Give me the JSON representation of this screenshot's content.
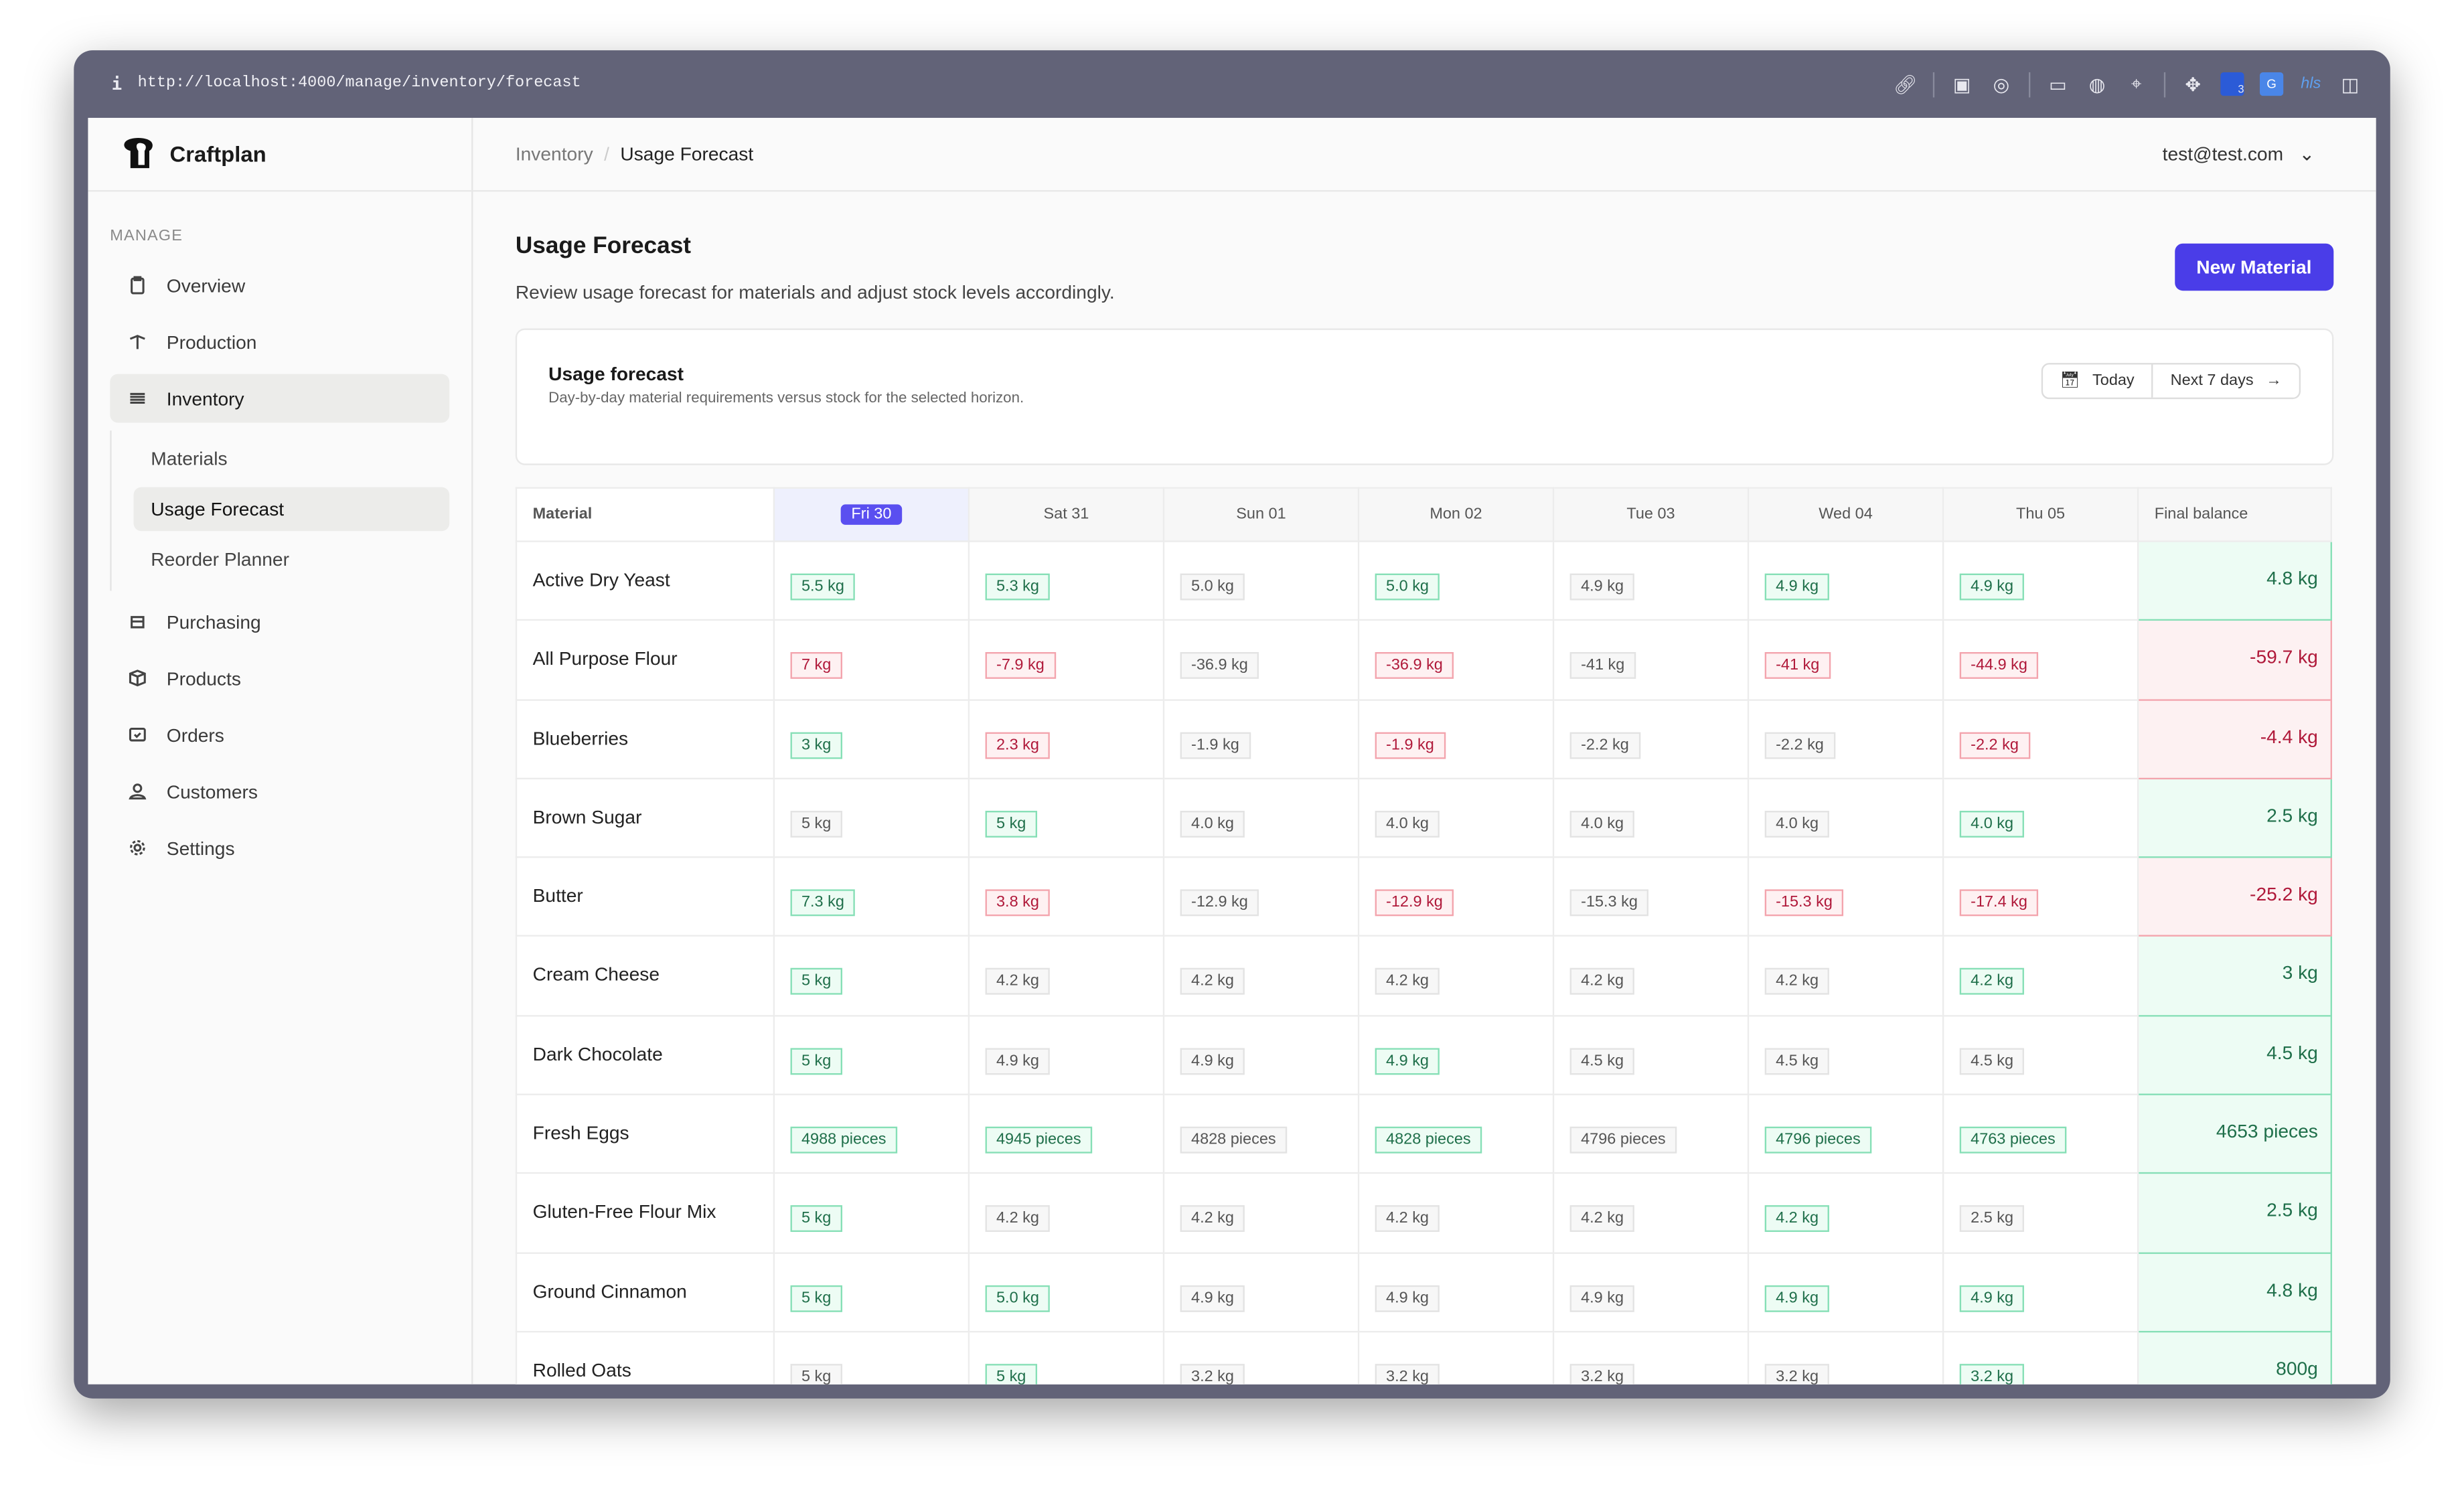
{
  "browser": {
    "url": "http://localhost:4000/manage/inventory/forecast",
    "info": "i",
    "extension_badge": "3",
    "hls": "hls"
  },
  "brand": "Craftplan",
  "sidebar": {
    "section": "MANAGE",
    "items": [
      {
        "label": "Overview",
        "icon": "clipboard-icon"
      },
      {
        "label": "Production",
        "icon": "signpost-icon"
      },
      {
        "label": "Inventory",
        "icon": "list-icon"
      },
      {
        "label": "Purchasing",
        "icon": "tray-icon"
      },
      {
        "label": "Products",
        "icon": "cube-icon"
      },
      {
        "label": "Orders",
        "icon": "inbox-check-icon"
      },
      {
        "label": "Customers",
        "icon": "users-icon"
      },
      {
        "label": "Settings",
        "icon": "gear-icon"
      }
    ],
    "subitems": [
      "Materials",
      "Usage Forecast",
      "Reorder Planner"
    ]
  },
  "header": {
    "crumb_parent": "Inventory",
    "crumb_sep": "/",
    "crumb_current": "Usage Forecast",
    "user": "test@test.com"
  },
  "page": {
    "title": "Usage Forecast",
    "description": "Review usage forecast for materials and adjust stock levels accordingly.",
    "new_button": "New Material"
  },
  "card": {
    "title": "Usage forecast",
    "subtitle": "Day-by-day material requirements versus stock for the selected horizon.",
    "today": "Today",
    "next": "Next 7 days"
  },
  "table": {
    "columns": [
      "Material",
      "Fri 30",
      "Sat 31",
      "Sun 01",
      "Mon 02",
      "Tue 03",
      "Wed 04",
      "Thu 05",
      "Final balance"
    ],
    "rows": [
      {
        "material": "Active Dry Yeast",
        "cells": [
          [
            "5.5 kg",
            "ok"
          ],
          [
            "5.3 kg",
            "ok"
          ],
          [
            "5.0 kg",
            "neutral"
          ],
          [
            "5.0 kg",
            "ok"
          ],
          [
            "4.9 kg",
            "neutral"
          ],
          [
            "4.9 kg",
            "ok"
          ],
          [
            "4.9 kg",
            "ok"
          ]
        ],
        "final": [
          "4.8 kg",
          "ok"
        ]
      },
      {
        "material": "All Purpose Flour",
        "cells": [
          [
            "7 kg",
            "short"
          ],
          [
            "-7.9 kg",
            "short"
          ],
          [
            "-36.9 kg",
            "neutral"
          ],
          [
            "-36.9 kg",
            "short"
          ],
          [
            "-41 kg",
            "neutral"
          ],
          [
            "-41 kg",
            "short"
          ],
          [
            "-44.9 kg",
            "short"
          ]
        ],
        "final": [
          "-59.7 kg",
          "short"
        ]
      },
      {
        "material": "Blueberries",
        "cells": [
          [
            "3 kg",
            "ok"
          ],
          [
            "2.3 kg",
            "short"
          ],
          [
            "-1.9 kg",
            "neutral"
          ],
          [
            "-1.9 kg",
            "short"
          ],
          [
            "-2.2 kg",
            "neutral"
          ],
          [
            "-2.2 kg",
            "neutral"
          ],
          [
            "-2.2 kg",
            "short"
          ]
        ],
        "final": [
          "-4.4 kg",
          "short"
        ]
      },
      {
        "material": "Brown Sugar",
        "cells": [
          [
            "5 kg",
            "neutral"
          ],
          [
            "5 kg",
            "ok"
          ],
          [
            "4.0 kg",
            "neutral"
          ],
          [
            "4.0 kg",
            "neutral"
          ],
          [
            "4.0 kg",
            "neutral"
          ],
          [
            "4.0 kg",
            "neutral"
          ],
          [
            "4.0 kg",
            "ok"
          ]
        ],
        "final": [
          "2.5 kg",
          "ok"
        ]
      },
      {
        "material": "Butter",
        "cells": [
          [
            "7.3 kg",
            "ok"
          ],
          [
            "3.8 kg",
            "short"
          ],
          [
            "-12.9 kg",
            "neutral"
          ],
          [
            "-12.9 kg",
            "short"
          ],
          [
            "-15.3 kg",
            "neutral"
          ],
          [
            "-15.3 kg",
            "short"
          ],
          [
            "-17.4 kg",
            "short"
          ]
        ],
        "final": [
          "-25.2 kg",
          "short"
        ]
      },
      {
        "material": "Cream Cheese",
        "cells": [
          [
            "5 kg",
            "ok"
          ],
          [
            "4.2 kg",
            "neutral"
          ],
          [
            "4.2 kg",
            "neutral"
          ],
          [
            "4.2 kg",
            "neutral"
          ],
          [
            "4.2 kg",
            "neutral"
          ],
          [
            "4.2 kg",
            "neutral"
          ],
          [
            "4.2 kg",
            "ok"
          ]
        ],
        "final": [
          "3 kg",
          "ok"
        ]
      },
      {
        "material": "Dark Chocolate",
        "cells": [
          [
            "5 kg",
            "ok"
          ],
          [
            "4.9 kg",
            "neutral"
          ],
          [
            "4.9 kg",
            "neutral"
          ],
          [
            "4.9 kg",
            "ok"
          ],
          [
            "4.5 kg",
            "neutral"
          ],
          [
            "4.5 kg",
            "neutral"
          ],
          [
            "4.5 kg",
            "neutral"
          ]
        ],
        "final": [
          "4.5 kg",
          "ok"
        ]
      },
      {
        "material": "Fresh Eggs",
        "cells": [
          [
            "4988 pieces",
            "ok"
          ],
          [
            "4945 pieces",
            "ok"
          ],
          [
            "4828 pieces",
            "neutral"
          ],
          [
            "4828 pieces",
            "ok"
          ],
          [
            "4796 pieces",
            "neutral"
          ],
          [
            "4796 pieces",
            "ok"
          ],
          [
            "4763 pieces",
            "ok"
          ]
        ],
        "final": [
          "4653 pieces",
          "ok"
        ]
      },
      {
        "material": "Gluten-Free Flour Mix",
        "cells": [
          [
            "5 kg",
            "ok"
          ],
          [
            "4.2 kg",
            "neutral"
          ],
          [
            "4.2 kg",
            "neutral"
          ],
          [
            "4.2 kg",
            "neutral"
          ],
          [
            "4.2 kg",
            "neutral"
          ],
          [
            "4.2 kg",
            "ok"
          ],
          [
            "2.5 kg",
            "neutral"
          ]
        ],
        "final": [
          "2.5 kg",
          "ok"
        ]
      },
      {
        "material": "Ground Cinnamon",
        "cells": [
          [
            "5 kg",
            "ok"
          ],
          [
            "5.0 kg",
            "ok"
          ],
          [
            "4.9 kg",
            "neutral"
          ],
          [
            "4.9 kg",
            "neutral"
          ],
          [
            "4.9 kg",
            "neutral"
          ],
          [
            "4.9 kg",
            "ok"
          ],
          [
            "4.9 kg",
            "ok"
          ]
        ],
        "final": [
          "4.8 kg",
          "ok"
        ]
      },
      {
        "material": "Rolled Oats",
        "cells": [
          [
            "5 kg",
            "neutral"
          ],
          [
            "5 kg",
            "ok"
          ],
          [
            "3.2 kg",
            "neutral"
          ],
          [
            "3.2 kg",
            "neutral"
          ],
          [
            "3.2 kg",
            "neutral"
          ],
          [
            "3.2 kg",
            "neutral"
          ],
          [
            "3.2 kg",
            "ok"
          ]
        ],
        "final": [
          "800g",
          "ok"
        ]
      }
    ]
  },
  "colors": {
    "accent": "#4a3de8",
    "ok_bg": "#edfcf4",
    "ok_text": "#1f6f4a",
    "short_bg": "#fef1f2",
    "short_text": "#b0193a"
  }
}
